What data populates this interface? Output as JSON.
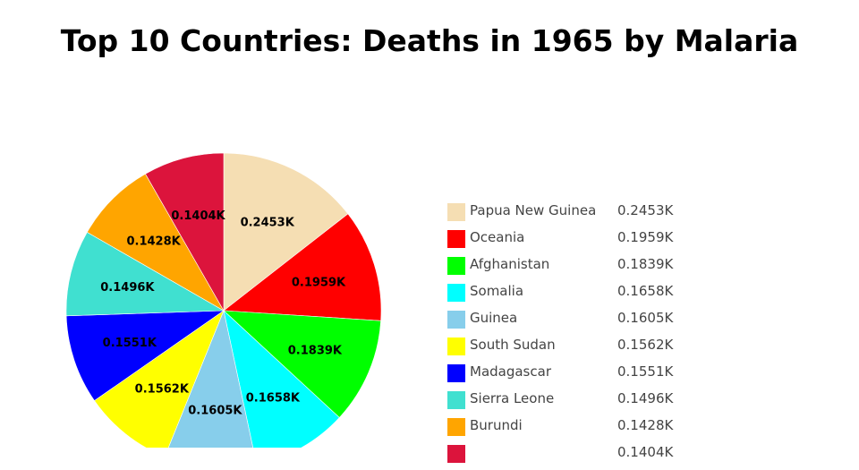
{
  "chart_data": {
    "type": "pie",
    "title": "Top 10 Countries: Deaths in 1965 by Malaria",
    "slices": [
      {
        "label": "Papua New Guinea",
        "value": 245.3,
        "display": "0.2453K",
        "color": "#f5deb3"
      },
      {
        "label": "Oceania",
        "value": 195.9,
        "display": "0.1959K",
        "color": "#ff0000"
      },
      {
        "label": "Afghanistan",
        "value": 183.9,
        "display": "0.1839K",
        "color": "#00ff00"
      },
      {
        "label": "Somalia",
        "value": 165.8,
        "display": "0.1658K",
        "color": "#00ffff"
      },
      {
        "label": "Guinea",
        "value": 160.5,
        "display": "0.1605K",
        "color": "#87ceeb"
      },
      {
        "label": "South Sudan",
        "value": 156.2,
        "display": "0.1562K",
        "color": "#ffff00"
      },
      {
        "label": "Madagascar",
        "value": 155.1,
        "display": "0.1551K",
        "color": "#0000ff"
      },
      {
        "label": "Sierra Leone",
        "value": 149.6,
        "display": "0.1496K",
        "color": "#40e0d0"
      },
      {
        "label": "Burundi",
        "value": 142.8,
        "display": "0.1428K",
        "color": "#ffa500"
      },
      {
        "label": "",
        "value": 140.4,
        "display": "0.1404K",
        "color": "#dc143c"
      }
    ],
    "legend_position": "right"
  }
}
